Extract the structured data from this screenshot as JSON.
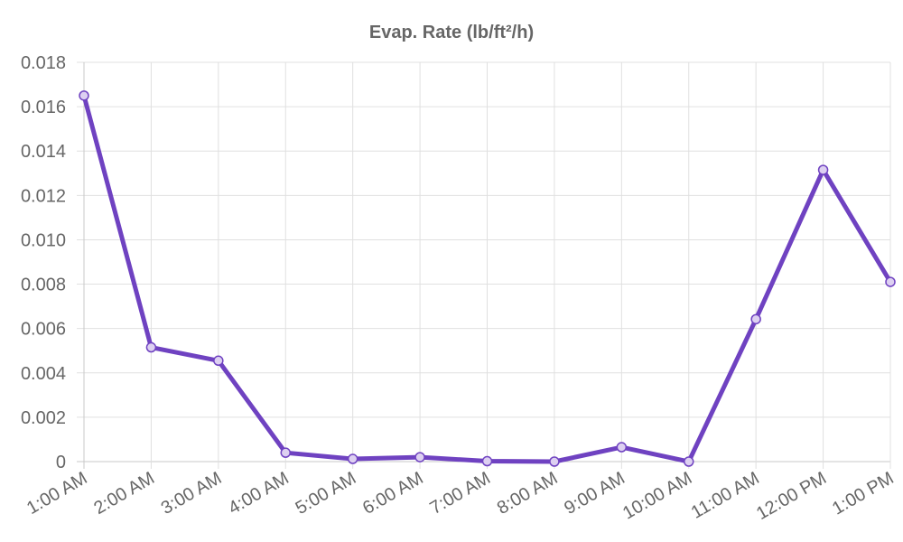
{
  "chart_data": {
    "type": "line",
    "title": "Evap. Rate (lb/ft²/h)",
    "xlabel": "",
    "ylabel": "",
    "categories": [
      "1:00 AM",
      "2:00 AM",
      "3:00 AM",
      "4:00 AM",
      "5:00 AM",
      "6:00 AM",
      "7:00 AM",
      "8:00 AM",
      "9:00 AM",
      "10:00 AM",
      "11:00 AM",
      "12:00 PM",
      "1:00 PM"
    ],
    "series": [
      {
        "name": "",
        "values": [
          0.0165,
          0.00515,
          0.00455,
          0.0004,
          0.00012,
          0.0002,
          2e-05,
          0.0,
          0.00065,
          0.0,
          0.00642,
          0.01315,
          0.0081
        ]
      }
    ],
    "ylim": [
      0,
      0.018
    ],
    "yticks": [
      "0",
      "0.002",
      "0.004",
      "0.006",
      "0.008",
      "0.010",
      "0.012",
      "0.014",
      "0.016",
      "0.018"
    ],
    "grid": true,
    "colors": {
      "line": "#6f42c1",
      "point_fill": "#ddd0f1",
      "grid": "#e0e0e0",
      "axis": "#c8c8c8",
      "text": "#666666"
    }
  }
}
